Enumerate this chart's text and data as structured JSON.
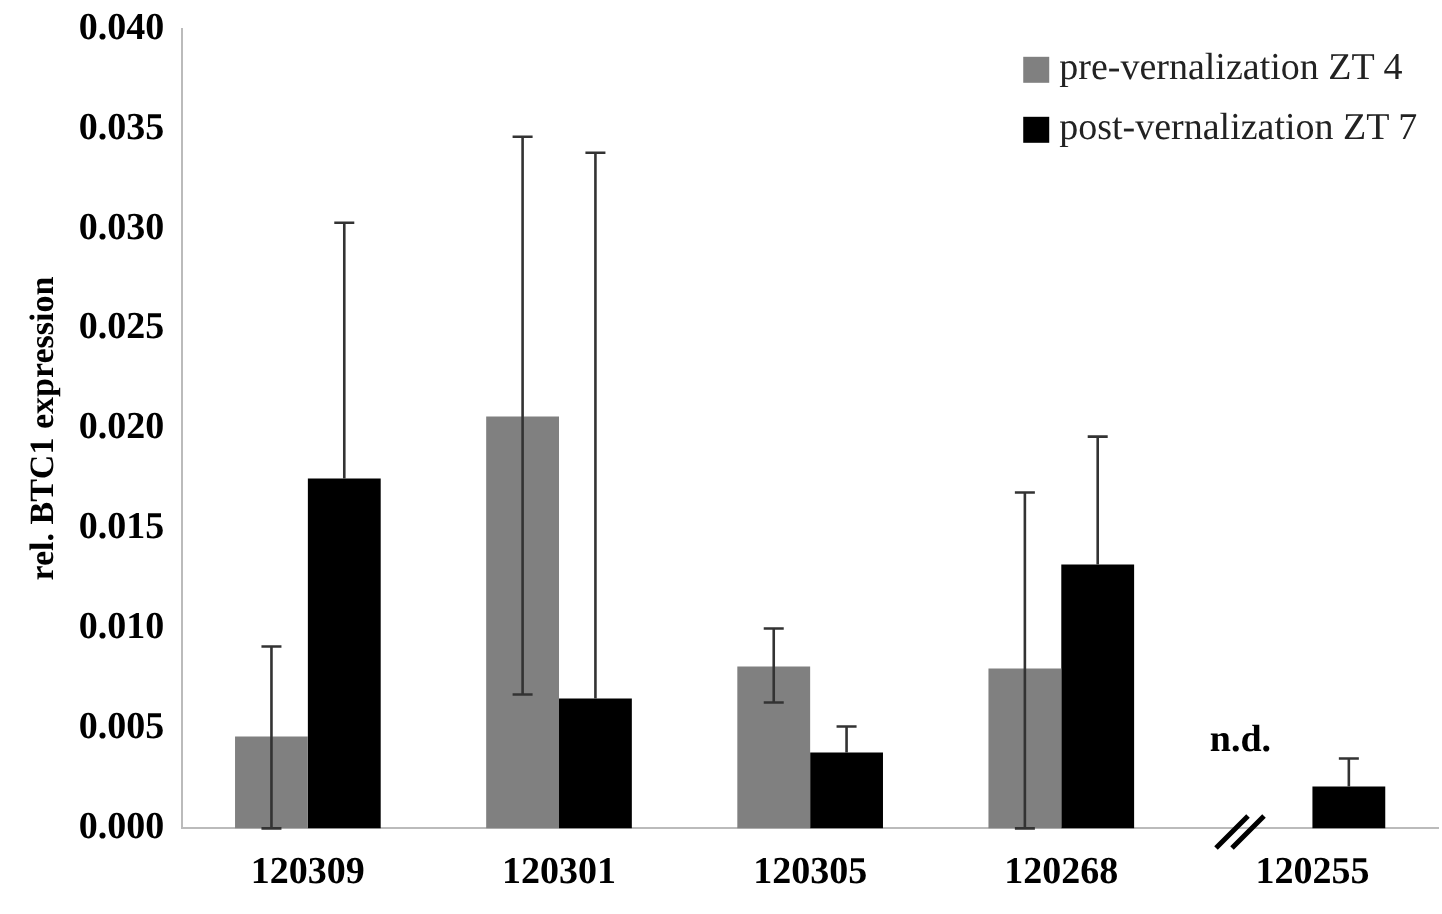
{
  "chart_data": {
    "type": "bar",
    "ylabel": "rel. BTC1 expression",
    "categories": [
      "120309",
      "120301",
      "120305",
      "120268",
      "120255"
    ],
    "series": [
      {
        "name": "pre-vernalization ZT 4",
        "color": "#808080",
        "values": [
          0.0046,
          0.0206,
          0.0081,
          0.008,
          null
        ],
        "errors": [
          [
            0,
            0.0091
          ],
          [
            0.0067,
            0.0346
          ],
          [
            0.0063,
            0.01
          ],
          [
            0,
            0.0168
          ],
          null
        ]
      },
      {
        "name": "post-vernalization ZT 7",
        "color": "#000000",
        "values": [
          0.0175,
          0.0065,
          0.0038,
          0.0132,
          0.0021
        ],
        "errors": [
          [
            0.0175,
            0.0303
          ],
          [
            0.0065,
            0.0338
          ],
          [
            0.0038,
            0.0051
          ],
          [
            0.0132,
            0.0196
          ],
          [
            0.0021,
            0.0035
          ]
        ]
      }
    ],
    "ylim": [
      0,
      0.04
    ],
    "yticks": [
      {
        "value": 0,
        "label": "0.000"
      },
      {
        "value": 0.005,
        "label": "0.005"
      },
      {
        "value": 0.01,
        "label": "0.010"
      },
      {
        "value": 0.015,
        "label": "0.015"
      },
      {
        "value": 0.02,
        "label": "0.020"
      },
      {
        "value": 0.025,
        "label": "0.025"
      },
      {
        "value": 0.03,
        "label": "0.030"
      },
      {
        "value": 0.035,
        "label": "0.035"
      },
      {
        "value": 0.04,
        "label": "0.040"
      }
    ],
    "grid": false,
    "legend": "top right",
    "annotations": [
      "n.d."
    ]
  }
}
